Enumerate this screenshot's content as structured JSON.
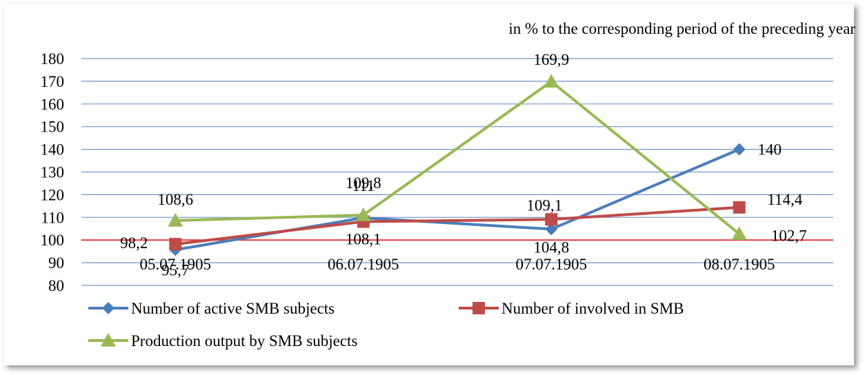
{
  "chart_data": {
    "type": "line",
    "title": "",
    "subtitle": "in % to the corresponding period of the preceding year",
    "xlabel": "",
    "ylabel": "",
    "categories": [
      "05.07.1905",
      "06.07.1905",
      "07.07.1905",
      "08.07.1905"
    ],
    "ylim": [
      80,
      180
    ],
    "yticks": [
      "80",
      "90",
      "100",
      "110",
      "120",
      "130",
      "140",
      "150",
      "160",
      "170",
      "180"
    ],
    "grid": true,
    "reference_line": 100,
    "legend_position": "bottom",
    "series": [
      {
        "name": "Number of active SMB subjects",
        "values": [
          95.7,
          109.8,
          104.8,
          140
        ],
        "labels": [
          "95,7",
          "109,8",
          "104,8",
          "140"
        ],
        "color": "#4a7ebb",
        "marker": "diamond"
      },
      {
        "name": "Number of involved in SMB",
        "values": [
          98.2,
          108.1,
          109.1,
          114.4
        ],
        "labels": [
          "98,2",
          "108,1",
          "109,1",
          "114,4"
        ],
        "color": "#be4b48",
        "marker": "square"
      },
      {
        "name": "Production output by SMB subjects",
        "values": [
          108.6,
          111,
          169.9,
          102.7
        ],
        "labels": [
          "108,6",
          "111",
          "169,9",
          "102,7"
        ],
        "color": "#98b954",
        "marker": "triangle"
      }
    ]
  }
}
